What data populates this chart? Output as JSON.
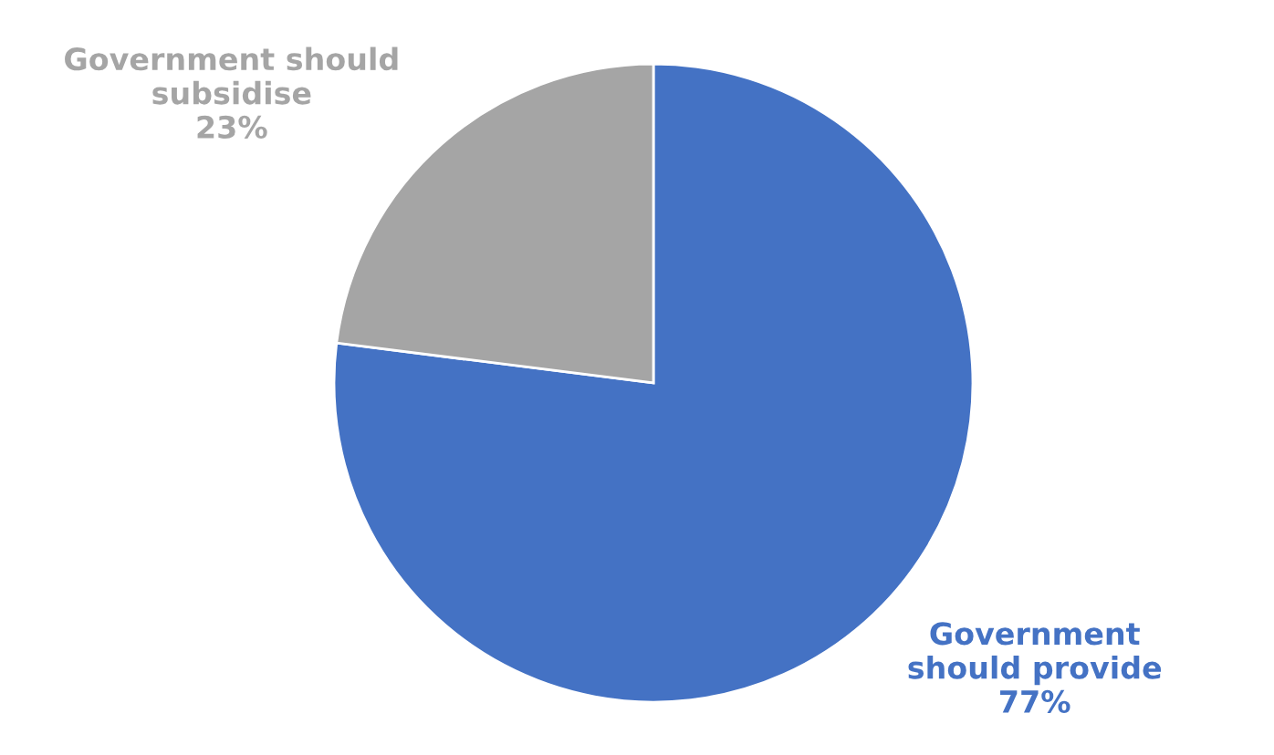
{
  "chart_data": {
    "type": "pie",
    "categories": [
      "Government\nshould provide",
      "Government should\nsubsidise"
    ],
    "values": [
      77,
      23
    ],
    "value_labels": [
      "77%",
      "23%"
    ],
    "colors": [
      "#4472c4",
      "#a5a5a5"
    ]
  }
}
